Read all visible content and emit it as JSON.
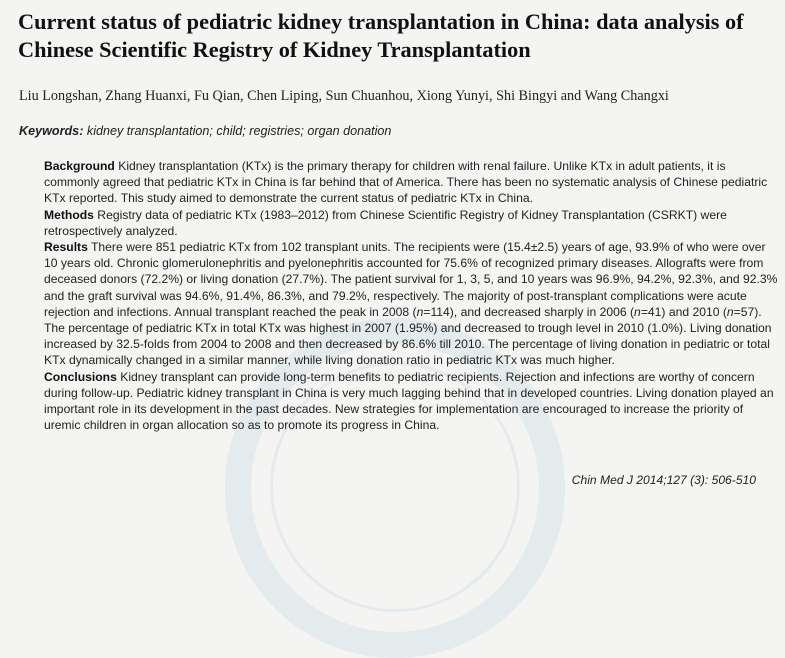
{
  "paper": {
    "title": "Current status of pediatric kidney transplantation in China: data analysis of Chinese Scientific Registry of Kidney Transplantation",
    "authors": "Liu Longshan, Zhang Huanxi, Fu Qian, Chen Liping, Sun Chuanhou, Xiong Yunyi, Shi Bingyi and Wang Changxi",
    "keywords_label": "Keywords:",
    "keywords_text": "kidney transplantation; child; registries; organ donation",
    "abstract": {
      "background_head": "Background",
      "background_text": "Kidney transplantation (KTx) is the primary therapy for children with renal failure. Unlike KTx in adult patients, it is commonly agreed that pediatric KTx in China is far behind that of America. There has been no systematic analysis of Chinese pediatric KTx reported. This study aimed to demonstrate the current status of pediatric KTx in China.",
      "methods_head": "Methods",
      "methods_text": "Registry data of pediatric KTx (1983–2012) from Chinese Scientific Registry of Kidney Transplantation (CSRKT) were retrospectively analyzed.",
      "results_head": "Results",
      "results_text": "There were 851 pediatric KTx from 102 transplant units. The recipients were (15.4±2.5) years of age, 93.9% of who were over 10 years old. Chronic glomerulonephritis and pyelonephritis accounted for 75.6% of recognized primary diseases. Allografts were from deceased donors (72.2%) or living donation (27.7%). The patient survival for 1, 3, 5, and 10 years was 96.9%, 94.2%, 92.3%, and 92.3% and the graft survival was 94.6%, 91.4%, 86.3%, and 79.2%, respectively. The majority of post-transplant complications were acute rejection and infections. Annual transplant reached the peak in 2008 (n=114), and decreased sharply in 2006 (n=41) and 2010 (n=57). The percentage of pediatric KTx in total KTx was highest in 2007 (1.95%) and decreased to trough level in 2010 (1.0%). Living donation increased by 32.5-folds from 2004 to 2008 and then decreased by 86.6% till 2010. The percentage of living donation in pediatric or total KTx dynamically changed in a similar manner, while living donation ratio in pediatric KTx was much higher.",
      "conclusions_head": "Conclusions",
      "conclusions_text": "Kidney transplant can provide long-term benefits to pediatric recipients. Rejection and infections are worthy of concern during follow-up. Pediatric kidney transplant in China is very much lagging behind that in developed countries. Living donation played an important role in its development in the past decades. New strategies for implementation are encouraged to increase the priority of uremic children in organ allocation so as to promote its progress in China."
    },
    "citation": "Chin Med J 2014;127 (3): 506-510"
  }
}
